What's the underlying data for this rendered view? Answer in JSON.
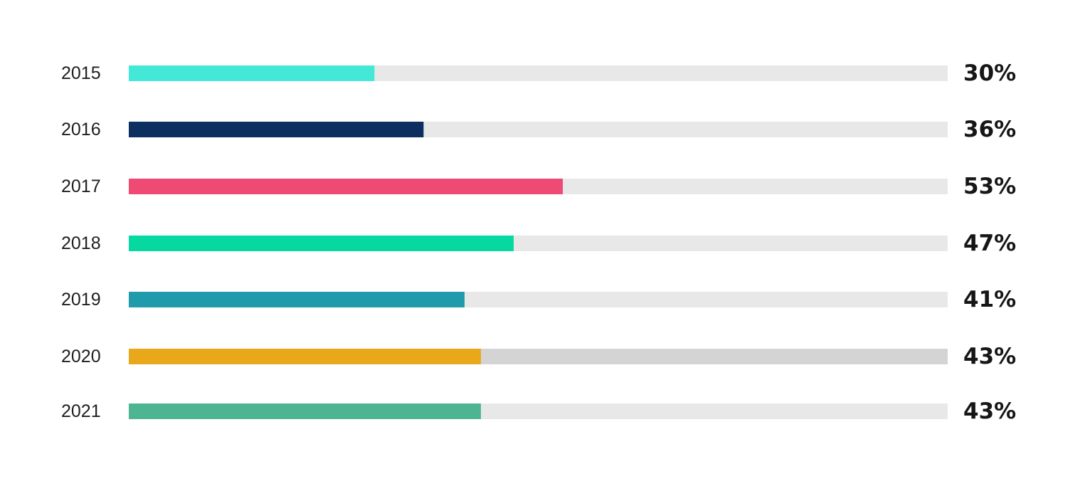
{
  "chart_data": {
    "type": "bar",
    "orientation": "horizontal",
    "categories": [
      "2015",
      "2016",
      "2017",
      "2018",
      "2019",
      "2020",
      "2021"
    ],
    "values": [
      30,
      36,
      53,
      47,
      41,
      43,
      43
    ],
    "value_labels": [
      "30%",
      "36%",
      "53%",
      "47%",
      "41%",
      "43%",
      "43%"
    ],
    "xlim": [
      0,
      100
    ],
    "unit": "%",
    "grid": false,
    "legend": "none",
    "colors": [
      "#43e9d6",
      "#0c2f5f",
      "#ef4a73",
      "#05d9a1",
      "#1f9bab",
      "#e9a81a",
      "#4eb592"
    ],
    "track_colors": [
      "#e8e8e8",
      "#e8e8e8",
      "#e8e8e8",
      "#e8e8e8",
      "#e8e8e8",
      "#d4d4d4",
      "#e8e8e8"
    ]
  }
}
